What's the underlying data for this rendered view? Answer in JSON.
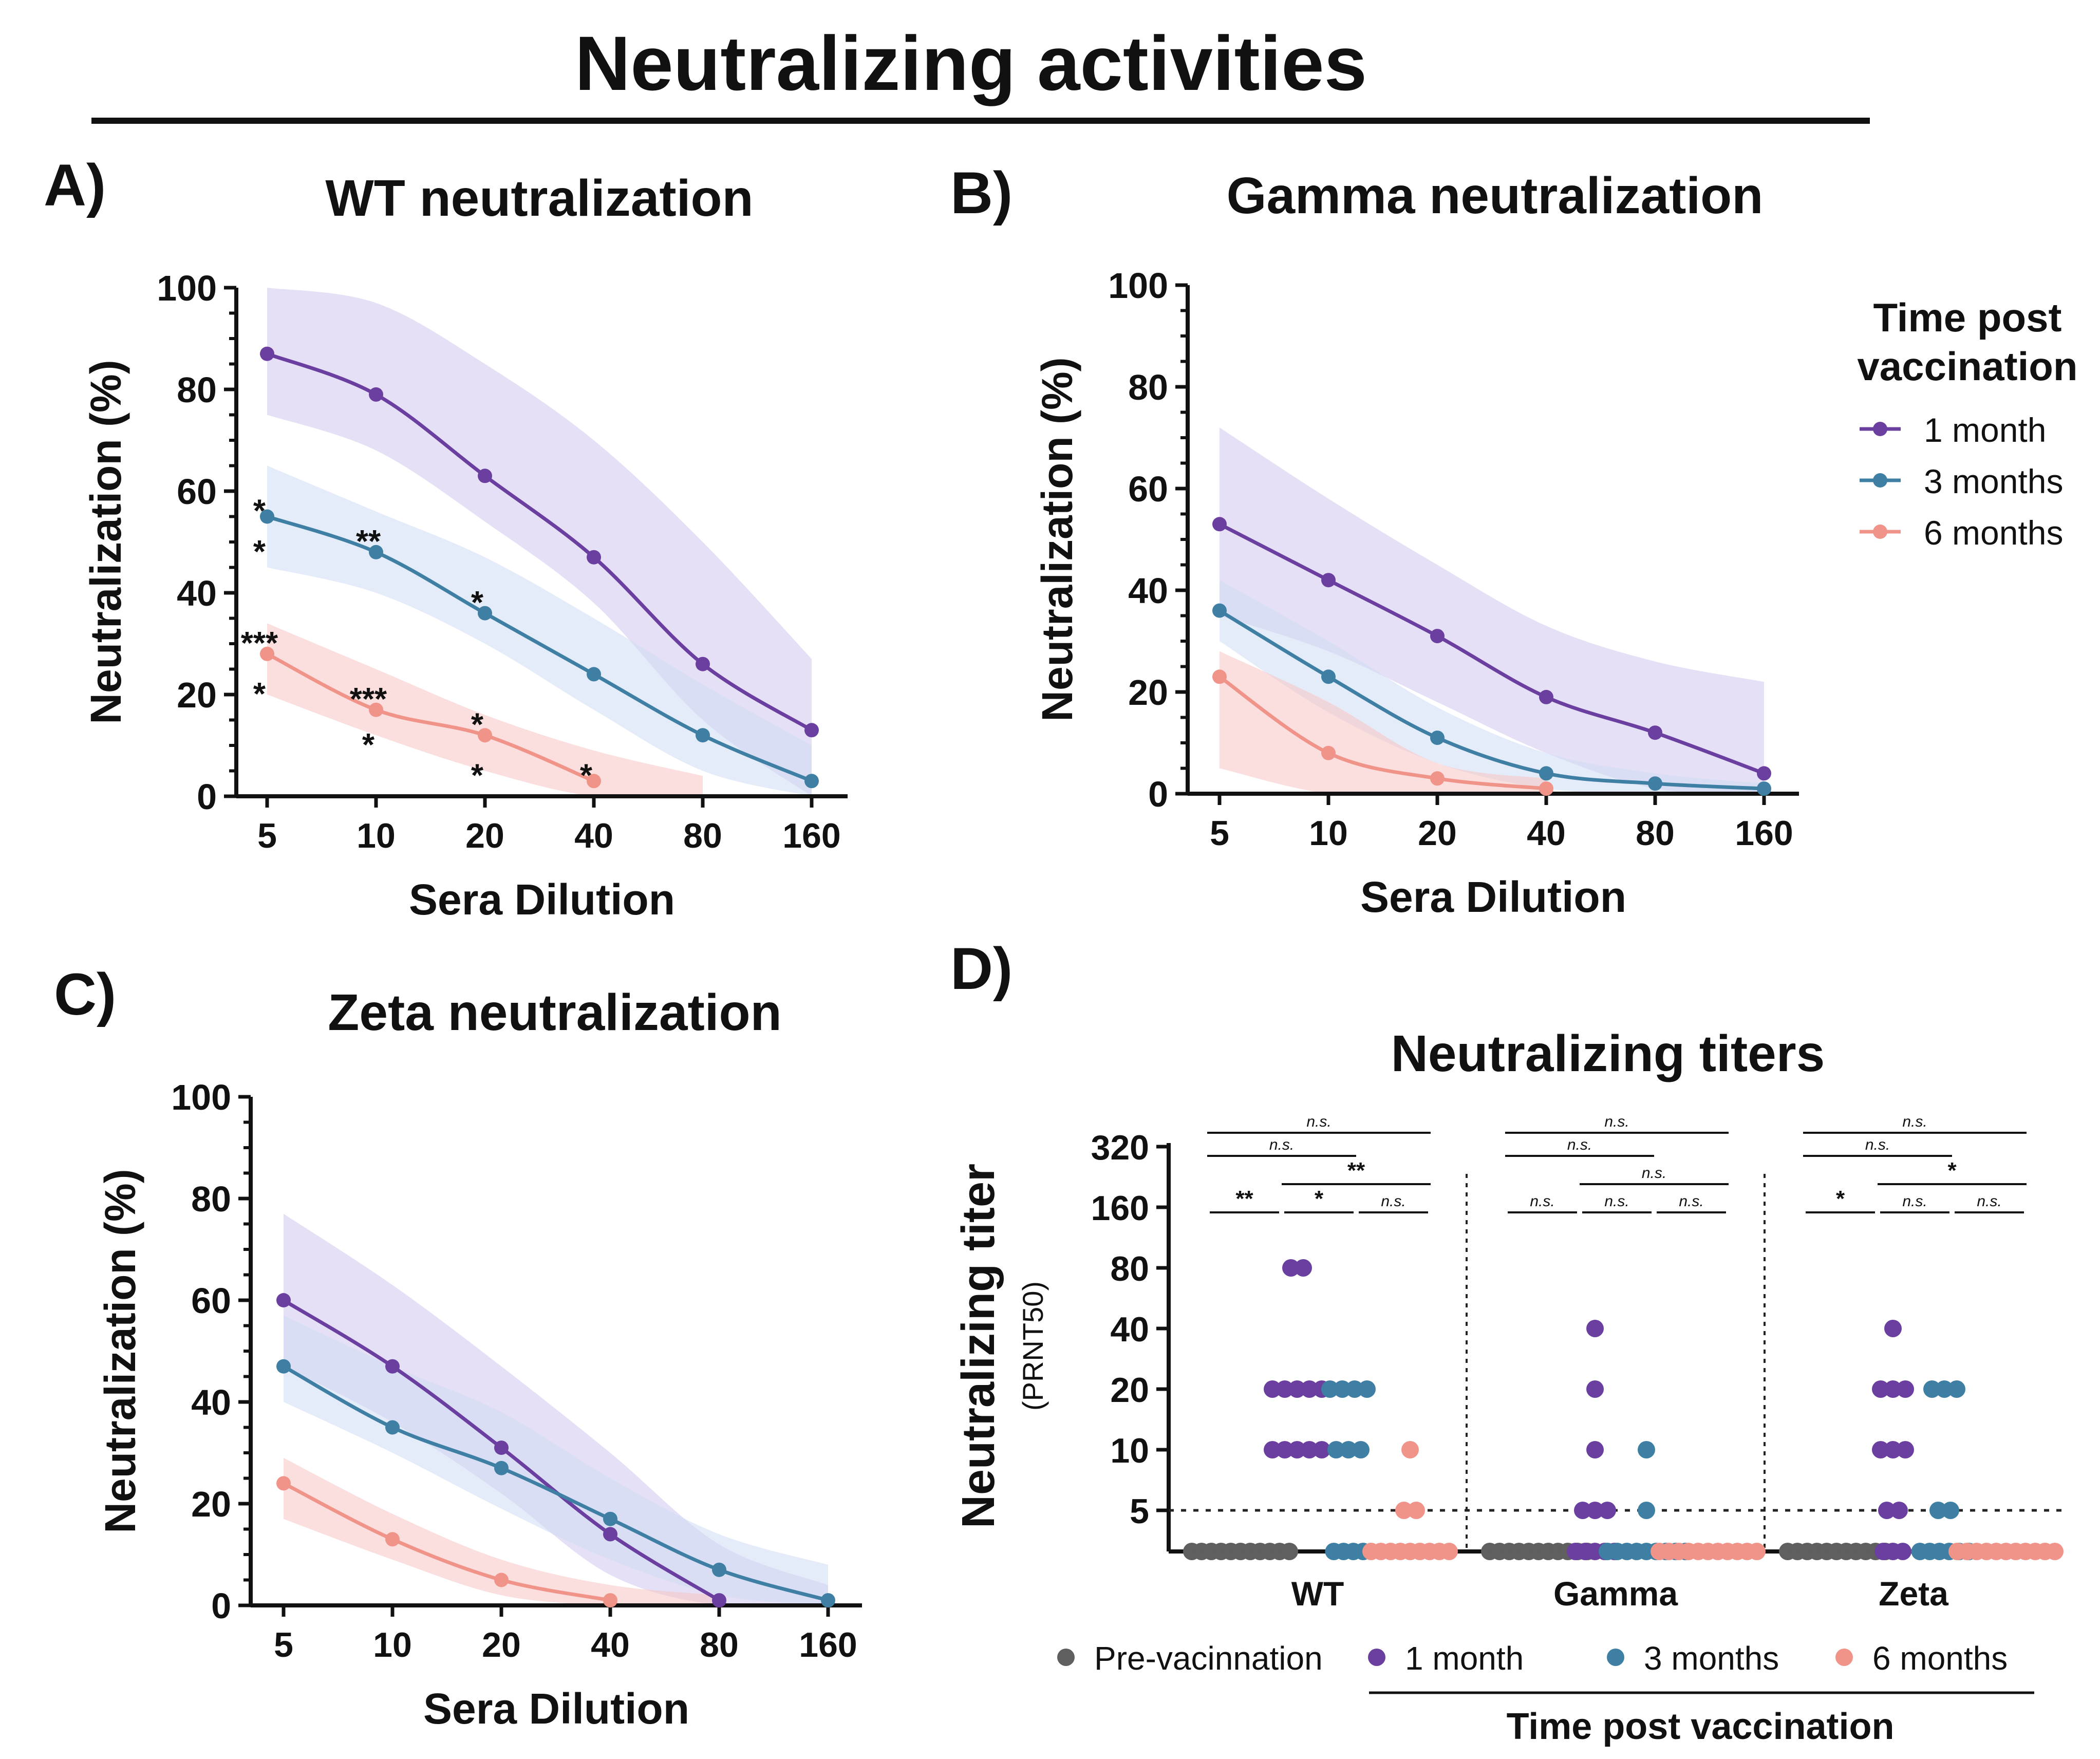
{
  "figure_title": "Neutralizing activities",
  "colors": {
    "pre": "#5f5f5f",
    "m1": "#6b3fa0",
    "m3": "#3e7fa3",
    "m6": "#f0948a",
    "band_m1": "#cfc6ec",
    "band_m3": "#cfdcf4",
    "band_m6": "#f8c5c2"
  },
  "legend": {
    "title_line1": "Time post",
    "title_line2": "vaccination",
    "items": [
      "1 month",
      "3 months",
      "6 months"
    ]
  },
  "bottom_legend": {
    "items": [
      "Pre-vacinnation",
      "1 month",
      "3 months",
      "6 months"
    ],
    "group_label": "Time post vaccination"
  },
  "chart_data": [
    {
      "panel": "A)",
      "type": "line",
      "title": "WT neutralization",
      "xlabel": "Sera  Dilution",
      "ylabel": "Neutralization (%)",
      "x": [
        5,
        10,
        20,
        40,
        80,
        160
      ],
      "x_ticks": [
        "5",
        "10",
        "20",
        "40",
        "80",
        "160"
      ],
      "ylim": [
        0,
        100
      ],
      "y_ticks": [
        "0",
        "20",
        "40",
        "60",
        "80",
        "100"
      ],
      "series": [
        {
          "name": "1 month",
          "values": [
            87,
            79,
            63,
            47,
            26,
            13
          ],
          "band_upper": [
            100,
            97,
            85,
            70,
            50,
            27
          ],
          "band_lower": [
            75,
            68,
            54,
            38,
            15,
            0
          ]
        },
        {
          "name": "3 months",
          "values": [
            55,
            48,
            36,
            24,
            12,
            3
          ],
          "band_upper": [
            65,
            56,
            47,
            35,
            22,
            10
          ],
          "band_lower": [
            45,
            40,
            30,
            17,
            5,
            0
          ]
        },
        {
          "name": "6 months",
          "values": [
            28,
            17,
            12,
            3,
            null,
            null
          ],
          "band_upper": [
            34,
            25,
            16,
            9,
            4,
            null
          ],
          "band_lower": [
            20,
            12,
            5,
            0,
            0,
            null
          ]
        }
      ],
      "annotations": [
        {
          "text": "*",
          "x": 5,
          "y": 57
        },
        {
          "text": "*",
          "x": 5,
          "y": 49
        },
        {
          "text": "**",
          "x": 10,
          "y": 51
        },
        {
          "text": "*",
          "x": 20,
          "y": 39
        },
        {
          "text": "***",
          "x": 5,
          "y": 31
        },
        {
          "text": "*",
          "x": 5,
          "y": 21
        },
        {
          "text": "***",
          "x": 10,
          "y": 20
        },
        {
          "text": "*",
          "x": 10,
          "y": 11
        },
        {
          "text": "*",
          "x": 20,
          "y": 15
        },
        {
          "text": "*",
          "x": 20,
          "y": 5
        },
        {
          "text": "*",
          "x": 40,
          "y": 5
        }
      ]
    },
    {
      "panel": "B)",
      "type": "line",
      "title": "Gamma neutralization",
      "xlabel": "Sera  Dilution",
      "ylabel": "Neutralization (%)",
      "x": [
        5,
        10,
        20,
        40,
        80,
        160
      ],
      "x_ticks": [
        "5",
        "10",
        "20",
        "40",
        "80",
        "160"
      ],
      "ylim": [
        0,
        100
      ],
      "y_ticks": [
        "0",
        "20",
        "40",
        "60",
        "80",
        "100"
      ],
      "series": [
        {
          "name": "1 month",
          "values": [
            53,
            42,
            31,
            19,
            12,
            4
          ],
          "band_upper": [
            72,
            58,
            45,
            33,
            26,
            22
          ],
          "band_lower": [
            35,
            28,
            18,
            8,
            1,
            0
          ]
        },
        {
          "name": "3 months",
          "values": [
            36,
            23,
            11,
            4,
            2,
            1
          ],
          "band_upper": [
            42,
            30,
            17,
            8,
            4,
            2
          ],
          "band_lower": [
            30,
            16,
            6,
            1,
            0,
            0
          ]
        },
        {
          "name": "6 months",
          "values": [
            23,
            8,
            3,
            1,
            null,
            null
          ],
          "band_upper": [
            28,
            18,
            6,
            3,
            null,
            null
          ],
          "band_lower": [
            5,
            0,
            0,
            0,
            null,
            null
          ]
        }
      ],
      "annotations": []
    },
    {
      "panel": "C)",
      "type": "line",
      "title": "Zeta neutralization",
      "xlabel": "Sera  Dilution",
      "ylabel": "Neutralization (%)",
      "x": [
        5,
        10,
        20,
        40,
        80,
        160
      ],
      "x_ticks": [
        "5",
        "10",
        "20",
        "40",
        "80",
        "160"
      ],
      "ylim": [
        0,
        100
      ],
      "y_ticks": [
        "0",
        "20",
        "40",
        "60",
        "80",
        "100"
      ],
      "series": [
        {
          "name": "1 month",
          "values": [
            60,
            47,
            31,
            14,
            1,
            null
          ],
          "band_upper": [
            77,
            63,
            47,
            30,
            12,
            4
          ],
          "band_lower": [
            47,
            36,
            22,
            6,
            0,
            0
          ]
        },
        {
          "name": "3 months",
          "values": [
            47,
            35,
            27,
            17,
            7,
            1
          ],
          "band_upper": [
            57,
            47,
            38,
            25,
            14,
            8
          ],
          "band_lower": [
            40,
            30,
            19,
            9,
            2,
            0
          ]
        },
        {
          "name": "6 months",
          "values": [
            24,
            13,
            5,
            1,
            null,
            null
          ],
          "band_upper": [
            29,
            18,
            9,
            4,
            2,
            null
          ],
          "band_lower": [
            17,
            9,
            2,
            0,
            0,
            null
          ]
        }
      ],
      "annotations": []
    },
    {
      "panel": "D)",
      "type": "scatter",
      "title": "Neutralizing titers",
      "ylabel": "Neutralizing titer",
      "ylabel_sub": "(PRNT50)",
      "categories": [
        "WT",
        "Gamma",
        "Zeta"
      ],
      "y_ticks": [
        "5",
        "10",
        "20",
        "40",
        "80",
        "160",
        "320"
      ],
      "y_tick_values": [
        5,
        10,
        20,
        40,
        80,
        160,
        320
      ],
      "threshold": 5,
      "groups": [
        {
          "category": "WT",
          "pre": [
            1,
            1,
            1,
            1,
            1,
            1,
            1,
            1,
            1,
            1,
            1
          ],
          "m1": [
            80,
            80,
            20,
            20,
            20,
            20,
            20,
            10,
            10,
            10,
            10,
            10
          ],
          "m3": [
            20,
            20,
            20,
            20,
            10,
            10,
            10,
            1,
            1,
            1,
            1
          ],
          "m6": [
            10,
            5,
            5,
            1,
            1,
            1,
            1,
            1,
            1,
            1,
            1,
            1
          ]
        },
        {
          "category": "Gamma",
          "pre": [
            1,
            1,
            1,
            1,
            1,
            1,
            1,
            1,
            1,
            1,
            1
          ],
          "m1": [
            40,
            20,
            10,
            5,
            5,
            5,
            1,
            1,
            1,
            1,
            1
          ],
          "m3": [
            10,
            5,
            1,
            1,
            1,
            1,
            1,
            1,
            1,
            1,
            1
          ],
          "m6": [
            1,
            1,
            1,
            1,
            1,
            1,
            1,
            1,
            1,
            1,
            1
          ]
        },
        {
          "category": "Zeta",
          "pre": [
            1,
            1,
            1,
            1,
            1,
            1,
            1,
            1,
            1,
            1,
            1
          ],
          "m1": [
            40,
            20,
            20,
            20,
            10,
            10,
            10,
            5,
            5,
            1,
            1,
            1
          ],
          "m3": [
            20,
            20,
            20,
            5,
            5,
            1,
            1,
            1,
            1,
            1,
            1
          ],
          "m6": [
            1,
            1,
            1,
            1,
            1,
            1,
            1,
            1,
            1,
            1,
            1
          ]
        }
      ],
      "brackets": [
        {
          "group": 0,
          "text": "n.s.",
          "level": 3,
          "from": 0,
          "to": 3
        },
        {
          "group": 0,
          "text": "n.s.",
          "level": 2,
          "from": 0,
          "to": 2
        },
        {
          "group": 0,
          "text": "**",
          "level": 1,
          "from": 1,
          "to": 3
        },
        {
          "group": 0,
          "text": "**",
          "level": 0,
          "from": 0,
          "to": 1
        },
        {
          "group": 0,
          "text": "*",
          "level": 0,
          "from": 1,
          "to": 2
        },
        {
          "group": 0,
          "text": "n.s.",
          "level": 0,
          "from": 2,
          "to": 3
        },
        {
          "group": 1,
          "text": "n.s.",
          "level": 3,
          "from": 0,
          "to": 3
        },
        {
          "group": 1,
          "text": "n.s.",
          "level": 2,
          "from": 0,
          "to": 2
        },
        {
          "group": 1,
          "text": "n.s.",
          "level": 1,
          "from": 1,
          "to": 3
        },
        {
          "group": 1,
          "text": "n.s.",
          "level": 0,
          "from": 0,
          "to": 1
        },
        {
          "group": 1,
          "text": "n.s.",
          "level": 0,
          "from": 1,
          "to": 2
        },
        {
          "group": 1,
          "text": "n.s.",
          "level": 0,
          "from": 2,
          "to": 3
        },
        {
          "group": 2,
          "text": "n.s.",
          "level": 3,
          "from": 0,
          "to": 3
        },
        {
          "group": 2,
          "text": "n.s.",
          "level": 2,
          "from": 0,
          "to": 2
        },
        {
          "group": 2,
          "text": "*",
          "level": 1,
          "from": 1,
          "to": 3
        },
        {
          "group": 2,
          "text": "*",
          "level": 0,
          "from": 0,
          "to": 1
        },
        {
          "group": 2,
          "text": "n.s.",
          "level": 0,
          "from": 1,
          "to": 2
        },
        {
          "group": 2,
          "text": "n.s.",
          "level": 0,
          "from": 2,
          "to": 3
        }
      ]
    }
  ]
}
